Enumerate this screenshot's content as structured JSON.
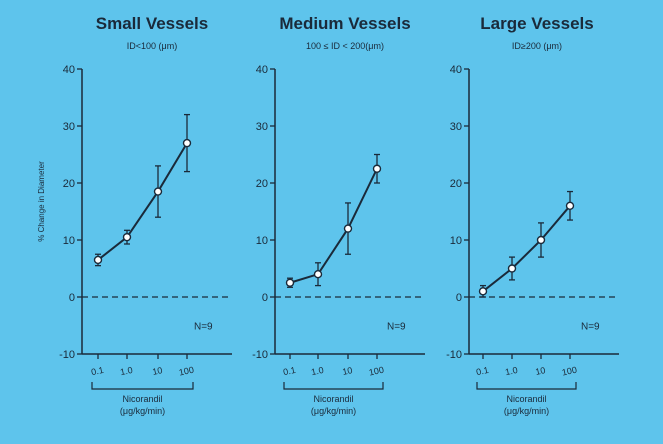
{
  "chart_data": [
    {
      "type": "line",
      "title": "Small Vessels",
      "subtitle": "ID<100 (μm)",
      "ylabel": "% Change in Diameter",
      "xlabel_line1": "Nicorandil",
      "xlabel_line2": "(μg/kg/min)",
      "x_categories": [
        "0.1",
        "1.0",
        "10",
        "100"
      ],
      "ylim": [
        -10,
        40
      ],
      "yticks": [
        -10,
        0,
        10,
        20,
        30,
        40
      ],
      "reference_line": 0,
      "annotation": "N=9",
      "points": [
        {
          "x": "0.1",
          "y": 6.5,
          "err": 1.0
        },
        {
          "x": "1.0",
          "y": 10.5,
          "err": 1.2
        },
        {
          "x": "10",
          "y": 18.5,
          "err": 4.5
        },
        {
          "x": "100",
          "y": 27,
          "err": 5
        }
      ]
    },
    {
      "type": "line",
      "title": "Medium Vessels",
      "subtitle": "100 ≤ ID < 200(μm)",
      "ylabel": "",
      "xlabel_line1": "Nicorandil",
      "xlabel_line2": "(μg/kg/min)",
      "x_categories": [
        "0.1",
        "1.0",
        "10",
        "100"
      ],
      "ylim": [
        -10,
        40
      ],
      "yticks": [
        -10,
        0,
        10,
        20,
        30,
        40
      ],
      "reference_line": 0,
      "annotation": "N=9",
      "points": [
        {
          "x": "0.1",
          "y": 2.5,
          "err": 0.8
        },
        {
          "x": "1.0",
          "y": 4,
          "err": 2
        },
        {
          "x": "10",
          "y": 12,
          "err": 4.5
        },
        {
          "x": "100",
          "y": 22.5,
          "err": 2.5
        }
      ]
    },
    {
      "type": "line",
      "title": "Large Vessels",
      "subtitle": "ID≥200 (μm)",
      "ylabel": "",
      "xlabel_line1": "Nicorandil",
      "xlabel_line2": "(μg/kg/min)",
      "x_categories": [
        "0.1",
        "1.0",
        "10",
        "100"
      ],
      "ylim": [
        -10,
        40
      ],
      "yticks": [
        -10,
        0,
        10,
        20,
        30,
        40
      ],
      "reference_line": 0,
      "annotation": "N=9",
      "points": [
        {
          "x": "0.1",
          "y": 1,
          "err": 1
        },
        {
          "x": "1.0",
          "y": 5,
          "err": 2
        },
        {
          "x": "10",
          "y": 10,
          "err": 3
        },
        {
          "x": "100",
          "y": 16,
          "err": 2.5
        }
      ]
    }
  ]
}
